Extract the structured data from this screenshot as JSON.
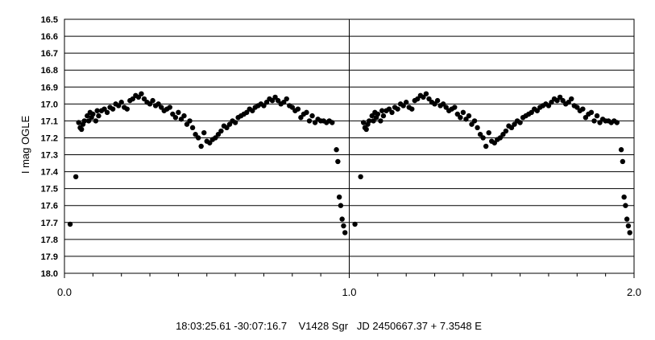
{
  "chart_data": {
    "type": "scatter",
    "title": "",
    "ylabel": "I mag OGLE",
    "xlabel": "18:03:25.61 -30:07:16.7    V1428 Sgr   JD 2450667.37 + 7.3548 E",
    "xlim": [
      0.0,
      2.0
    ],
    "ylim": [
      16.5,
      18.0
    ],
    "y_inverted": true,
    "grid": "horizontal",
    "legend": "none",
    "marker_color": "#000000",
    "x_tick_labels": [
      "0.0",
      "1.0",
      "2.0"
    ],
    "x_ticks": [
      0.0,
      1.0,
      2.0
    ],
    "y_ticks": [
      16.5,
      16.6,
      16.7,
      16.8,
      16.9,
      17.0,
      17.1,
      17.2,
      17.3,
      17.4,
      17.5,
      17.6,
      17.7,
      17.8,
      17.9,
      18.0
    ],
    "y_tick_labels": [
      "16.5",
      "16.6",
      "16.7",
      "16.8",
      "16.9",
      "17.0",
      "17.1",
      "17.2",
      "17.3",
      "17.4",
      "17.5",
      "17.6",
      "17.7",
      "17.8",
      "17.9",
      "18.0"
    ],
    "series": [
      {
        "points": [
          [
            0.02,
            17.71
          ],
          [
            0.04,
            17.43
          ],
          [
            0.05,
            17.11
          ],
          [
            0.055,
            17.14
          ],
          [
            0.06,
            17.15
          ],
          [
            0.065,
            17.12
          ],
          [
            0.07,
            17.1
          ],
          [
            0.08,
            17.07
          ],
          [
            0.085,
            17.1
          ],
          [
            0.09,
            17.05
          ],
          [
            0.095,
            17.08
          ],
          [
            0.1,
            17.06
          ],
          [
            0.11,
            17.1
          ],
          [
            0.115,
            17.04
          ],
          [
            0.12,
            17.07
          ],
          [
            0.13,
            17.04
          ],
          [
            0.14,
            17.03
          ],
          [
            0.15,
            17.05
          ],
          [
            0.16,
            17.02
          ],
          [
            0.17,
            17.03
          ],
          [
            0.18,
            17.0
          ],
          [
            0.19,
            17.01
          ],
          [
            0.2,
            16.99
          ],
          [
            0.21,
            17.02
          ],
          [
            0.22,
            17.03
          ],
          [
            0.23,
            16.98
          ],
          [
            0.24,
            16.97
          ],
          [
            0.25,
            16.95
          ],
          [
            0.26,
            16.96
          ],
          [
            0.27,
            16.94
          ],
          [
            0.28,
            16.97
          ],
          [
            0.29,
            16.99
          ],
          [
            0.3,
            17.0
          ],
          [
            0.31,
            16.98
          ],
          [
            0.32,
            17.01
          ],
          [
            0.33,
            17.0
          ],
          [
            0.34,
            17.02
          ],
          [
            0.35,
            17.04
          ],
          [
            0.36,
            17.03
          ],
          [
            0.37,
            17.02
          ],
          [
            0.38,
            17.06
          ],
          [
            0.39,
            17.08
          ],
          [
            0.4,
            17.05
          ],
          [
            0.41,
            17.09
          ],
          [
            0.42,
            17.07
          ],
          [
            0.43,
            17.12
          ],
          [
            0.44,
            17.1
          ],
          [
            0.45,
            17.14
          ],
          [
            0.46,
            17.18
          ],
          [
            0.47,
            17.2
          ],
          [
            0.48,
            17.25
          ],
          [
            0.49,
            17.17
          ],
          [
            0.5,
            17.22
          ],
          [
            0.51,
            17.23
          ],
          [
            0.52,
            17.21
          ],
          [
            0.53,
            17.2
          ],
          [
            0.54,
            17.18
          ],
          [
            0.55,
            17.16
          ],
          [
            0.56,
            17.13
          ],
          [
            0.57,
            17.14
          ],
          [
            0.58,
            17.12
          ],
          [
            0.59,
            17.1
          ],
          [
            0.6,
            17.11
          ],
          [
            0.61,
            17.08
          ],
          [
            0.62,
            17.07
          ],
          [
            0.63,
            17.06
          ],
          [
            0.64,
            17.05
          ],
          [
            0.65,
            17.03
          ],
          [
            0.66,
            17.04
          ],
          [
            0.67,
            17.02
          ],
          [
            0.68,
            17.01
          ],
          [
            0.69,
            17.0
          ],
          [
            0.7,
            17.01
          ],
          [
            0.71,
            16.99
          ],
          [
            0.72,
            16.97
          ],
          [
            0.73,
            16.98
          ],
          [
            0.74,
            16.96
          ],
          [
            0.75,
            16.98
          ],
          [
            0.76,
            17.0
          ],
          [
            0.77,
            16.99
          ],
          [
            0.78,
            16.97
          ],
          [
            0.79,
            17.01
          ],
          [
            0.8,
            17.02
          ],
          [
            0.81,
            17.04
          ],
          [
            0.82,
            17.03
          ],
          [
            0.83,
            17.08
          ],
          [
            0.84,
            17.06
          ],
          [
            0.85,
            17.05
          ],
          [
            0.86,
            17.1
          ],
          [
            0.87,
            17.07
          ],
          [
            0.88,
            17.11
          ],
          [
            0.89,
            17.09
          ],
          [
            0.9,
            17.1
          ],
          [
            0.91,
            17.1
          ],
          [
            0.92,
            17.11
          ],
          [
            0.93,
            17.1
          ],
          [
            0.94,
            17.11
          ],
          [
            0.955,
            17.27
          ],
          [
            0.96,
            17.34
          ],
          [
            0.965,
            17.55
          ],
          [
            0.97,
            17.6
          ],
          [
            0.975,
            17.68
          ],
          [
            0.98,
            17.72
          ],
          [
            0.985,
            17.76
          ]
        ]
      }
    ]
  }
}
